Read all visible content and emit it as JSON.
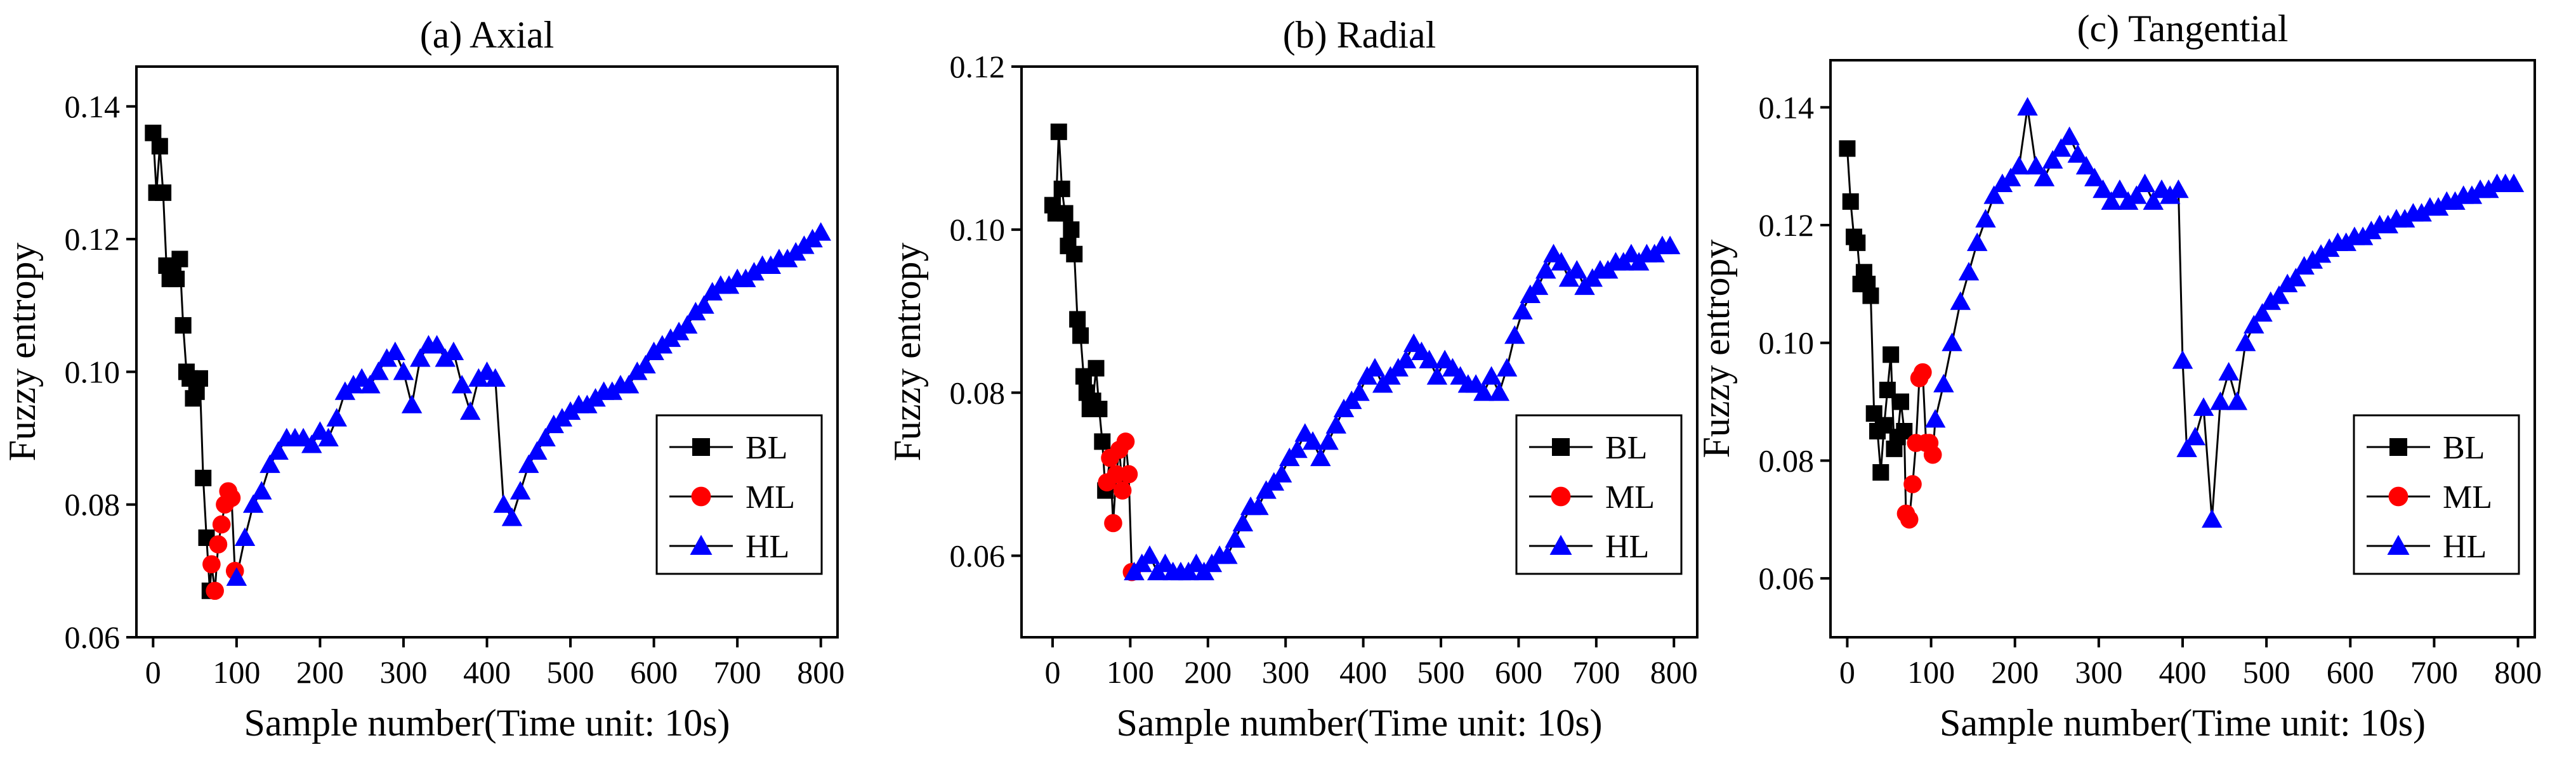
{
  "colors": {
    "BL": "#000000",
    "ML": "#ff0000",
    "HL": "#0000ff"
  },
  "chart_data": [
    {
      "type": "line",
      "title": "(a) Axial",
      "xlabel": "Sample number(Time unit: 10s)",
      "ylabel": "Fuzzy entropy",
      "xlim": [
        -20,
        820
      ],
      "ylim": [
        0.06,
        0.146
      ],
      "xticks": [
        0,
        100,
        200,
        300,
        400,
        500,
        600,
        700,
        800
      ],
      "yticks": [
        0.06,
        0.08,
        0.1,
        0.12,
        0.14
      ],
      "ytick_labels": [
        "0.06",
        "0.08",
        "0.10",
        "0.12",
        "0.14"
      ],
      "legend": [
        "BL",
        "ML",
        "HL"
      ],
      "legend_position": "lower-right",
      "series": [
        {
          "name": "BL",
          "marker": "square",
          "x": [
            0,
            4,
            8,
            12,
            16,
            20,
            24,
            28,
            32,
            36,
            40,
            44,
            48,
            52,
            56,
            60,
            64,
            68
          ],
          "y": [
            0.136,
            0.127,
            0.134,
            0.127,
            0.116,
            0.114,
            0.116,
            0.114,
            0.117,
            0.107,
            0.1,
            0.099,
            0.096,
            0.097,
            0.099,
            0.084,
            0.075,
            0.067
          ]
        },
        {
          "name": "ML",
          "marker": "circle",
          "x": [
            70,
            74,
            78,
            82,
            86,
            90,
            94,
            98
          ],
          "y": [
            0.071,
            0.067,
            0.074,
            0.077,
            0.08,
            0.082,
            0.081,
            0.07
          ]
        },
        {
          "name": "HL",
          "marker": "triangle",
          "x": [
            100,
            110,
            120,
            130,
            140,
            150,
            160,
            170,
            180,
            190,
            200,
            210,
            220,
            230,
            240,
            250,
            260,
            270,
            280,
            290,
            300,
            310,
            320,
            330,
            340,
            350,
            360,
            370,
            380,
            390,
            400,
            410,
            420,
            430,
            440,
            450,
            460,
            470,
            480,
            490,
            500,
            510,
            520,
            530,
            540,
            550,
            560,
            570,
            580,
            590,
            600,
            610,
            620,
            630,
            640,
            650,
            660,
            670,
            680,
            690,
            700,
            710,
            720,
            730,
            740,
            750,
            760,
            770,
            780,
            790,
            800
          ],
          "y": [
            0.069,
            0.075,
            0.08,
            0.082,
            0.086,
            0.088,
            0.09,
            0.09,
            0.09,
            0.089,
            0.091,
            0.09,
            0.093,
            0.097,
            0.098,
            0.099,
            0.098,
            0.1,
            0.102,
            0.103,
            0.1,
            0.095,
            0.102,
            0.104,
            0.104,
            0.102,
            0.103,
            0.098,
            0.094,
            0.099,
            0.1,
            0.099,
            0.08,
            0.078,
            0.082,
            0.086,
            0.088,
            0.09,
            0.092,
            0.093,
            0.094,
            0.095,
            0.095,
            0.096,
            0.097,
            0.097,
            0.098,
            0.098,
            0.1,
            0.101,
            0.103,
            0.104,
            0.105,
            0.106,
            0.107,
            0.109,
            0.11,
            0.112,
            0.113,
            0.113,
            0.114,
            0.114,
            0.115,
            0.116,
            0.116,
            0.117,
            0.117,
            0.118,
            0.119,
            0.12,
            0.121
          ]
        }
      ]
    },
    {
      "type": "line",
      "title": "(b) Radial",
      "xlabel": "Sample number(Time unit: 10s)",
      "ylabel": "Fuzzy entropy",
      "xlim": [
        -40,
        830
      ],
      "ylim": [
        0.05,
        0.12
      ],
      "xticks": [
        0,
        100,
        200,
        300,
        400,
        500,
        600,
        700,
        800
      ],
      "yticks": [
        0.06,
        0.08,
        0.1,
        0.12
      ],
      "ytick_labels": [
        "0.06",
        "0.08",
        "0.10",
        "0.12"
      ],
      "legend": [
        "BL",
        "ML",
        "HL"
      ],
      "legend_position": "lower-right",
      "series": [
        {
          "name": "BL",
          "marker": "square",
          "x": [
            0,
            4,
            8,
            12,
            16,
            20,
            24,
            28,
            32,
            36,
            40,
            44,
            48,
            52,
            56,
            60,
            64,
            68
          ],
          "y": [
            0.103,
            0.102,
            0.112,
            0.105,
            0.102,
            0.098,
            0.1,
            0.097,
            0.089,
            0.087,
            0.082,
            0.08,
            0.078,
            0.079,
            0.083,
            0.078,
            0.074,
            0.068
          ]
        },
        {
          "name": "ML",
          "marker": "circle",
          "x": [
            70,
            74,
            78,
            82,
            86,
            90,
            94,
            98,
            102
          ],
          "y": [
            0.069,
            0.072,
            0.064,
            0.07,
            0.073,
            0.068,
            0.074,
            0.07,
            0.058
          ]
        },
        {
          "name": "HL",
          "marker": "triangle",
          "x": [
            105,
            115,
            125,
            135,
            145,
            155,
            165,
            175,
            185,
            195,
            205,
            215,
            225,
            235,
            245,
            255,
            265,
            275,
            285,
            295,
            305,
            315,
            325,
            335,
            345,
            355,
            365,
            375,
            385,
            395,
            405,
            415,
            425,
            435,
            445,
            455,
            465,
            475,
            485,
            495,
            505,
            515,
            525,
            535,
            545,
            555,
            565,
            575,
            585,
            595,
            605,
            615,
            625,
            635,
            645,
            655,
            665,
            675,
            685,
            695,
            705,
            715,
            725,
            735,
            745,
            755,
            765,
            775,
            785,
            795
          ],
          "y": [
            0.058,
            0.059,
            0.06,
            0.058,
            0.059,
            0.058,
            0.058,
            0.058,
            0.059,
            0.058,
            0.059,
            0.06,
            0.06,
            0.062,
            0.064,
            0.066,
            0.066,
            0.068,
            0.069,
            0.07,
            0.072,
            0.073,
            0.075,
            0.074,
            0.072,
            0.074,
            0.076,
            0.078,
            0.079,
            0.08,
            0.082,
            0.083,
            0.081,
            0.082,
            0.083,
            0.084,
            0.086,
            0.085,
            0.084,
            0.082,
            0.084,
            0.083,
            0.082,
            0.081,
            0.081,
            0.08,
            0.082,
            0.08,
            0.083,
            0.087,
            0.09,
            0.092,
            0.093,
            0.095,
            0.097,
            0.096,
            0.094,
            0.095,
            0.093,
            0.094,
            0.095,
            0.095,
            0.096,
            0.096,
            0.097,
            0.096,
            0.097,
            0.097,
            0.098,
            0.098
          ]
        }
      ]
    },
    {
      "type": "line",
      "title": "(c) Tangential",
      "xlabel": "Sample number(Time unit: 10s)",
      "ylabel": "Fuzzy entropy",
      "xlim": [
        -20,
        820
      ],
      "ylim": [
        0.05,
        0.148
      ],
      "xticks": [
        0,
        100,
        200,
        300,
        400,
        500,
        600,
        700,
        800
      ],
      "yticks": [
        0.06,
        0.08,
        0.1,
        0.12,
        0.14
      ],
      "ytick_labels": [
        "0.06",
        "0.08",
        "0.10",
        "0.12",
        "0.14"
      ],
      "legend": [
        "BL",
        "ML",
        "HL"
      ],
      "legend_position": "lower-right",
      "series": [
        {
          "name": "BL",
          "marker": "square",
          "x": [
            0,
            4,
            8,
            12,
            16,
            20,
            24,
            28,
            32,
            36,
            40,
            44,
            48,
            52,
            56,
            60,
            64,
            68
          ],
          "y": [
            0.133,
            0.124,
            0.118,
            0.117,
            0.11,
            0.112,
            0.11,
            0.108,
            0.088,
            0.085,
            0.078,
            0.086,
            0.092,
            0.098,
            0.082,
            0.084,
            0.09,
            0.085
          ]
        },
        {
          "name": "ML",
          "marker": "circle",
          "x": [
            70,
            74,
            78,
            82,
            86,
            90,
            94,
            98,
            102
          ],
          "y": [
            0.071,
            0.07,
            0.076,
            0.083,
            0.094,
            0.095,
            0.083,
            0.083,
            0.081
          ]
        },
        {
          "name": "HL",
          "marker": "triangle",
          "x": [
            105,
            115,
            125,
            135,
            145,
            155,
            165,
            175,
            185,
            195,
            205,
            215,
            225,
            235,
            245,
            255,
            265,
            275,
            285,
            295,
            305,
            315,
            325,
            335,
            345,
            355,
            365,
            375,
            385,
            395,
            400,
            405,
            415,
            425,
            435,
            445,
            455,
            465,
            475,
            485,
            495,
            505,
            515,
            525,
            535,
            545,
            555,
            565,
            575,
            585,
            595,
            605,
            615,
            625,
            635,
            645,
            655,
            665,
            675,
            685,
            695,
            705,
            715,
            725,
            735,
            745,
            755,
            765,
            775,
            785,
            795
          ],
          "y": [
            0.087,
            0.093,
            0.1,
            0.107,
            0.112,
            0.117,
            0.121,
            0.125,
            0.127,
            0.128,
            0.13,
            0.14,
            0.13,
            0.128,
            0.131,
            0.133,
            0.135,
            0.132,
            0.13,
            0.128,
            0.126,
            0.124,
            0.126,
            0.124,
            0.125,
            0.127,
            0.124,
            0.126,
            0.125,
            0.126,
            0.097,
            0.082,
            0.084,
            0.089,
            0.07,
            0.09,
            0.095,
            0.09,
            0.1,
            0.103,
            0.105,
            0.107,
            0.108,
            0.11,
            0.111,
            0.113,
            0.114,
            0.115,
            0.116,
            0.117,
            0.117,
            0.118,
            0.118,
            0.119,
            0.12,
            0.12,
            0.121,
            0.121,
            0.122,
            0.122,
            0.123,
            0.123,
            0.124,
            0.124,
            0.125,
            0.125,
            0.126,
            0.126,
            0.127,
            0.127,
            0.127
          ]
        }
      ]
    }
  ]
}
